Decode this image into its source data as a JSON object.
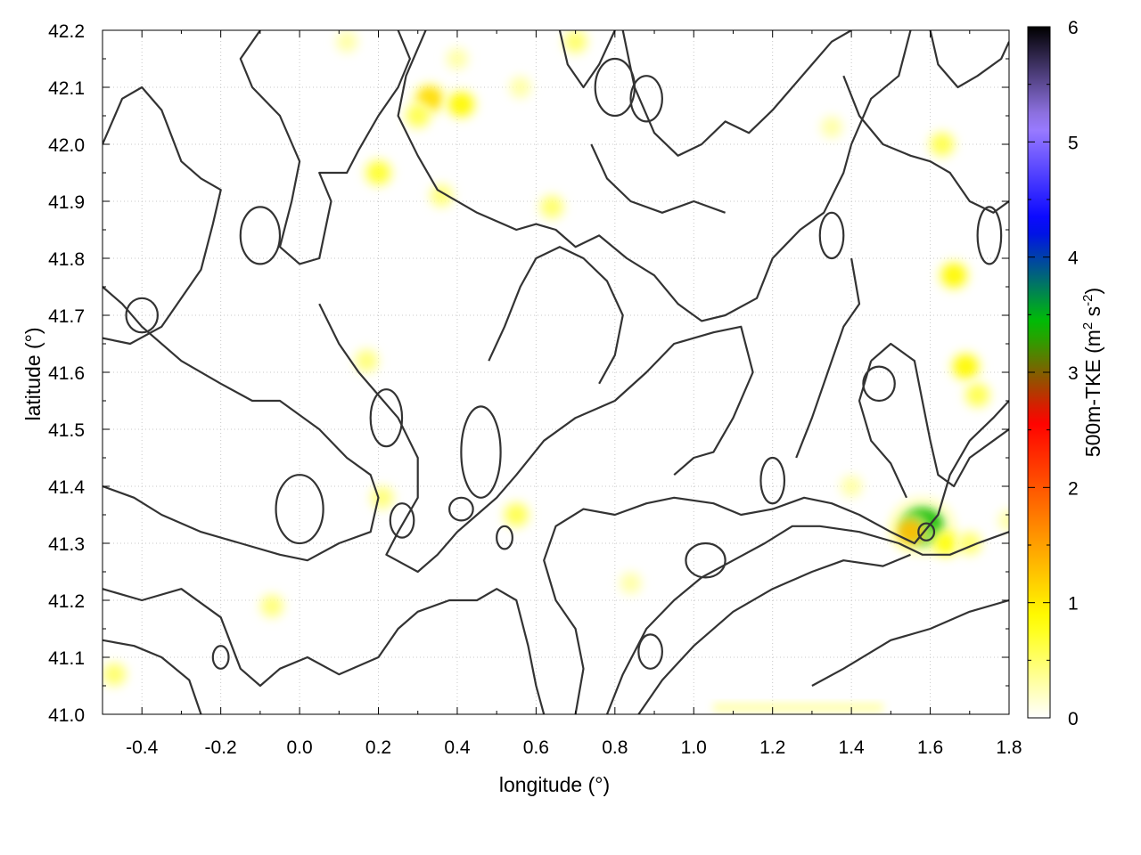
{
  "chart_data": {
    "type": "heatmap",
    "title": "",
    "xlabel": "longitude (°)",
    "ylabel": "latitude (°)",
    "xlim": [
      -0.5,
      1.8
    ],
    "ylim": [
      41.0,
      42.2
    ],
    "x_ticks": [
      "-0.4",
      "-0.2",
      "0.0",
      "0.2",
      "0.4",
      "0.6",
      "0.8",
      "1.0",
      "1.2",
      "1.4",
      "1.6",
      "1.8"
    ],
    "y_ticks": [
      "41.0",
      "41.1",
      "41.2",
      "41.3",
      "41.4",
      "41.5",
      "41.6",
      "41.7",
      "41.8",
      "41.9",
      "42.0",
      "42.1",
      "42.2"
    ],
    "grid": true,
    "colorbar": {
      "label_main": "500m-TKE (m",
      "label_sup1": "2",
      "label_mid": " s",
      "label_sup2": "-2",
      "label_end": ")",
      "min": 0,
      "max": 6,
      "ticks": [
        "0",
        "1",
        "2",
        "3",
        "4",
        "5",
        "6"
      ],
      "colors": [
        "#ffffff",
        "#ffff00",
        "#ff8000",
        "#ff0000",
        "#00c000",
        "#0000ff",
        "#a080ff",
        "#000000"
      ]
    },
    "tke_blobs": [
      {
        "lon": 0.33,
        "lat": 42.08,
        "value": 1.1
      },
      {
        "lon": 0.41,
        "lat": 42.07,
        "value": 0.9
      },
      {
        "lon": 0.3,
        "lat": 42.05,
        "value": 0.6
      },
      {
        "lon": 0.2,
        "lat": 41.95,
        "value": 0.7
      },
      {
        "lon": 0.36,
        "lat": 41.91,
        "value": 0.45
      },
      {
        "lon": 0.4,
        "lat": 42.15,
        "value": 0.3
      },
      {
        "lon": 0.64,
        "lat": 41.89,
        "value": 0.5
      },
      {
        "lon": 1.63,
        "lat": 42.0,
        "value": 0.6
      },
      {
        "lon": 1.69,
        "lat": 41.61,
        "value": 0.9
      },
      {
        "lon": 1.72,
        "lat": 41.56,
        "value": 0.6
      },
      {
        "lon": 1.66,
        "lat": 41.77,
        "value": 0.9
      },
      {
        "lon": 1.58,
        "lat": 41.33,
        "value": 3.4
      },
      {
        "lon": 1.55,
        "lat": 41.32,
        "value": 1.3
      },
      {
        "lon": 1.64,
        "lat": 41.3,
        "value": 0.8
      },
      {
        "lon": 1.7,
        "lat": 41.3,
        "value": 0.5
      },
      {
        "lon": 0.55,
        "lat": 41.35,
        "value": 0.6
      },
      {
        "lon": 0.21,
        "lat": 41.38,
        "value": 0.45
      },
      {
        "lon": 0.17,
        "lat": 41.62,
        "value": 0.45
      },
      {
        "lon": -0.07,
        "lat": 41.19,
        "value": 0.45
      },
      {
        "lon": -0.47,
        "lat": 41.07,
        "value": 0.5
      },
      {
        "lon": 0.84,
        "lat": 41.23,
        "value": 0.3
      },
      {
        "lon": 1.35,
        "lat": 42.03,
        "value": 0.3
      },
      {
        "lon": 1.4,
        "lat": 41.4,
        "value": 0.3
      },
      {
        "lon": 1.8,
        "lat": 41.34,
        "value": 0.3
      },
      {
        "lon": 0.7,
        "lat": 42.18,
        "value": 0.5
      },
      {
        "lon": 0.12,
        "lat": 42.18,
        "value": 0.3
      },
      {
        "lon": 0.56,
        "lat": 42.1,
        "value": 0.3
      }
    ],
    "tke_band": {
      "lon": [
        1.05,
        1.48
      ],
      "lat": 41.01,
      "value": 0.35
    },
    "contours": [
      [
        [
          -0.5,
          42.0
        ],
        [
          -0.45,
          42.08
        ],
        [
          -0.4,
          42.1
        ],
        [
          -0.35,
          42.06
        ],
        [
          -0.3,
          41.97
        ],
        [
          -0.25,
          41.94
        ],
        [
          -0.2,
          41.92
        ],
        [
          -0.22,
          41.86
        ],
        [
          -0.25,
          41.78
        ],
        [
          -0.3,
          41.73
        ],
        [
          -0.35,
          41.68
        ],
        [
          -0.43,
          41.65
        ],
        [
          -0.5,
          41.66
        ]
      ],
      [
        [
          -0.1,
          42.2
        ],
        [
          -0.15,
          42.15
        ],
        [
          -0.12,
          42.1
        ],
        [
          -0.05,
          42.05
        ],
        [
          0.0,
          41.97
        ],
        [
          -0.02,
          41.9
        ],
        [
          -0.05,
          41.82
        ],
        [
          0.0,
          41.79
        ],
        [
          0.05,
          41.8
        ],
        [
          0.08,
          41.9
        ],
        [
          0.05,
          41.95
        ],
        [
          0.12,
          41.95
        ],
        [
          0.15,
          41.99
        ],
        [
          0.2,
          42.05
        ],
        [
          0.25,
          42.1
        ],
        [
          0.28,
          42.15
        ],
        [
          0.25,
          42.2
        ]
      ],
      [
        [
          0.32,
          42.2
        ],
        [
          0.27,
          42.12
        ],
        [
          0.25,
          42.05
        ],
        [
          0.3,
          41.98
        ],
        [
          0.35,
          41.92
        ],
        [
          0.45,
          41.88
        ],
        [
          0.55,
          41.85
        ],
        [
          0.6,
          41.86
        ],
        [
          0.65,
          41.85
        ],
        [
          0.7,
          41.82
        ],
        [
          0.76,
          41.84
        ],
        [
          0.83,
          41.8
        ],
        [
          0.9,
          41.77
        ],
        [
          0.96,
          41.72
        ],
        [
          1.02,
          41.69
        ],
        [
          1.08,
          41.7
        ],
        [
          1.16,
          41.73
        ],
        [
          1.2,
          41.8
        ],
        [
          1.27,
          41.85
        ],
        [
          1.33,
          41.88
        ],
        [
          1.38,
          41.95
        ],
        [
          1.4,
          42.0
        ],
        [
          1.45,
          42.08
        ],
        [
          1.52,
          42.12
        ],
        [
          1.55,
          42.2
        ]
      ],
      [
        [
          -0.5,
          41.75
        ],
        [
          -0.45,
          41.72
        ],
        [
          -0.4,
          41.68
        ],
        [
          -0.3,
          41.62
        ],
        [
          -0.2,
          41.58
        ],
        [
          -0.12,
          41.55
        ],
        [
          -0.05,
          41.55
        ],
        [
          0.05,
          41.5
        ],
        [
          0.12,
          41.45
        ],
        [
          0.18,
          41.42
        ],
        [
          0.2,
          41.38
        ],
        [
          0.18,
          41.32
        ],
        [
          0.1,
          41.3
        ],
        [
          0.02,
          41.27
        ],
        [
          -0.05,
          41.28
        ],
        [
          -0.15,
          41.3
        ],
        [
          -0.25,
          41.32
        ],
        [
          -0.35,
          41.35
        ],
        [
          -0.42,
          41.38
        ],
        [
          -0.5,
          41.4
        ]
      ],
      [
        [
          0.05,
          41.72
        ],
        [
          0.1,
          41.65
        ],
        [
          0.15,
          41.6
        ],
        [
          0.2,
          41.56
        ],
        [
          0.25,
          41.52
        ],
        [
          0.3,
          41.45
        ],
        [
          0.3,
          41.38
        ],
        [
          0.25,
          41.32
        ],
        [
          0.22,
          41.28
        ],
        [
          0.3,
          41.25
        ],
        [
          0.35,
          41.28
        ],
        [
          0.4,
          41.32
        ],
        [
          0.45,
          41.35
        ],
        [
          0.5,
          41.38
        ],
        [
          0.55,
          41.42
        ],
        [
          0.62,
          41.48
        ],
        [
          0.7,
          41.52
        ],
        [
          0.8,
          41.55
        ],
        [
          0.88,
          41.6
        ],
        [
          0.95,
          41.65
        ],
        [
          1.05,
          41.67
        ],
        [
          1.12,
          41.68
        ],
        [
          1.15,
          41.6
        ],
        [
          1.1,
          41.52
        ],
        [
          1.05,
          41.46
        ],
        [
          1.0,
          41.45
        ],
        [
          0.95,
          41.42
        ]
      ],
      [
        [
          -0.5,
          41.22
        ],
        [
          -0.4,
          41.2
        ],
        [
          -0.3,
          41.22
        ],
        [
          -0.2,
          41.17
        ],
        [
          -0.15,
          41.08
        ],
        [
          -0.1,
          41.05
        ],
        [
          -0.05,
          41.08
        ],
        [
          0.02,
          41.1
        ],
        [
          0.1,
          41.07
        ],
        [
          0.2,
          41.1
        ],
        [
          0.25,
          41.15
        ],
        [
          0.3,
          41.18
        ],
        [
          0.38,
          41.2
        ],
        [
          0.45,
          41.2
        ],
        [
          0.5,
          41.22
        ],
        [
          0.55,
          41.2
        ],
        [
          0.58,
          41.12
        ],
        [
          0.6,
          41.05
        ],
        [
          0.62,
          41.0
        ]
      ],
      [
        [
          -0.5,
          41.13
        ],
        [
          -0.42,
          41.12
        ],
        [
          -0.35,
          41.1
        ],
        [
          -0.28,
          41.06
        ],
        [
          -0.25,
          41.0
        ]
      ],
      [
        [
          0.7,
          41.0
        ],
        [
          0.72,
          41.08
        ],
        [
          0.7,
          41.15
        ],
        [
          0.65,
          41.2
        ],
        [
          0.62,
          41.27
        ],
        [
          0.65,
          41.33
        ],
        [
          0.72,
          41.36
        ],
        [
          0.8,
          41.35
        ],
        [
          0.88,
          41.37
        ],
        [
          0.95,
          41.38
        ],
        [
          1.05,
          41.37
        ],
        [
          1.12,
          41.35
        ],
        [
          1.2,
          41.36
        ],
        [
          1.28,
          41.38
        ],
        [
          1.35,
          41.37
        ],
        [
          1.42,
          41.35
        ],
        [
          1.5,
          41.32
        ],
        [
          1.56,
          41.3
        ],
        [
          1.62,
          41.35
        ],
        [
          1.65,
          41.42
        ],
        [
          1.7,
          41.48
        ],
        [
          1.76,
          41.52
        ],
        [
          1.8,
          41.55
        ]
      ],
      [
        [
          0.78,
          41.0
        ],
        [
          0.82,
          41.07
        ],
        [
          0.88,
          41.15
        ],
        [
          0.95,
          41.2
        ],
        [
          1.02,
          41.24
        ],
        [
          1.1,
          41.27
        ],
        [
          1.18,
          41.3
        ],
        [
          1.25,
          41.33
        ],
        [
          1.32,
          41.33
        ],
        [
          1.42,
          41.32
        ],
        [
          1.52,
          41.3
        ],
        [
          1.58,
          41.28
        ],
        [
          1.65,
          41.28
        ],
        [
          1.72,
          41.3
        ],
        [
          1.8,
          41.32
        ]
      ],
      [
        [
          0.86,
          41.0
        ],
        [
          0.92,
          41.06
        ],
        [
          1.0,
          41.12
        ],
        [
          1.1,
          41.18
        ],
        [
          1.2,
          41.22
        ],
        [
          1.3,
          41.25
        ],
        [
          1.38,
          41.27
        ],
        [
          1.48,
          41.26
        ],
        [
          1.55,
          41.28
        ]
      ],
      [
        [
          1.3,
          41.05
        ],
        [
          1.38,
          41.08
        ],
        [
          1.5,
          41.13
        ],
        [
          1.6,
          41.15
        ],
        [
          1.7,
          41.18
        ],
        [
          1.8,
          41.2
        ]
      ],
      [
        [
          1.45,
          41.62
        ],
        [
          1.5,
          41.65
        ],
        [
          1.56,
          41.62
        ],
        [
          1.58,
          41.55
        ],
        [
          1.6,
          41.48
        ],
        [
          1.62,
          41.42
        ],
        [
          1.66,
          41.4
        ],
        [
          1.7,
          41.45
        ],
        [
          1.76,
          41.48
        ],
        [
          1.8,
          41.5
        ]
      ],
      [
        [
          1.45,
          41.62
        ],
        [
          1.42,
          41.55
        ],
        [
          1.45,
          41.48
        ],
        [
          1.5,
          41.44
        ],
        [
          1.54,
          41.38
        ]
      ],
      [
        [
          1.38,
          42.12
        ],
        [
          1.42,
          42.05
        ],
        [
          1.48,
          42.0
        ],
        [
          1.55,
          41.98
        ],
        [
          1.6,
          41.97
        ],
        [
          1.65,
          41.95
        ],
        [
          1.7,
          41.9
        ],
        [
          1.76,
          41.88
        ],
        [
          1.8,
          41.9
        ]
      ],
      [
        [
          1.6,
          42.2
        ],
        [
          1.62,
          42.14
        ],
        [
          1.67,
          42.1
        ],
        [
          1.72,
          42.12
        ],
        [
          1.78,
          42.15
        ],
        [
          1.8,
          42.18
        ]
      ],
      [
        [
          0.66,
          42.2
        ],
        [
          0.68,
          42.14
        ],
        [
          0.72,
          42.1
        ],
        [
          0.76,
          42.14
        ],
        [
          0.8,
          42.2
        ]
      ],
      [
        [
          0.82,
          42.2
        ],
        [
          0.85,
          42.1
        ],
        [
          0.9,
          42.02
        ],
        [
          0.96,
          41.98
        ],
        [
          1.02,
          42.0
        ],
        [
          1.08,
          42.04
        ],
        [
          1.14,
          42.02
        ],
        [
          1.2,
          42.06
        ],
        [
          1.25,
          42.1
        ],
        [
          1.3,
          42.14
        ],
        [
          1.35,
          42.18
        ],
        [
          1.4,
          42.2
        ]
      ],
      [
        [
          0.74,
          42.0
        ],
        [
          0.78,
          41.94
        ],
        [
          0.84,
          41.9
        ],
        [
          0.92,
          41.88
        ],
        [
          1.0,
          41.9
        ],
        [
          1.08,
          41.88
        ]
      ],
      [
        [
          0.48,
          41.62
        ],
        [
          0.52,
          41.68
        ],
        [
          0.56,
          41.75
        ],
        [
          0.6,
          41.8
        ],
        [
          0.66,
          41.82
        ],
        [
          0.72,
          41.8
        ],
        [
          0.78,
          41.76
        ],
        [
          0.82,
          41.7
        ],
        [
          0.8,
          41.63
        ],
        [
          0.76,
          41.58
        ]
      ],
      [
        [
          1.26,
          41.45
        ],
        [
          1.3,
          41.52
        ],
        [
          1.34,
          41.6
        ],
        [
          1.38,
          41.68
        ],
        [
          1.42,
          41.72
        ],
        [
          1.4,
          41.8
        ]
      ]
    ],
    "loops": [
      {
        "lon": 0.46,
        "lat": 41.46,
        "rx": 0.05,
        "ry": 0.08
      },
      {
        "lon": 0.22,
        "lat": 41.52,
        "rx": 0.04,
        "ry": 0.05
      },
      {
        "lon": 0.41,
        "lat": 41.36,
        "rx": 0.03,
        "ry": 0.02
      },
      {
        "lon": 0.52,
        "lat": 41.31,
        "rx": 0.02,
        "ry": 0.02
      },
      {
        "lon": 0.26,
        "lat": 41.34,
        "rx": 0.03,
        "ry": 0.03
      },
      {
        "lon": 1.03,
        "lat": 41.27,
        "rx": 0.05,
        "ry": 0.03
      },
      {
        "lon": 1.47,
        "lat": 41.58,
        "rx": 0.04,
        "ry": 0.03
      },
      {
        "lon": 1.35,
        "lat": 41.84,
        "rx": 0.03,
        "ry": 0.04
      },
      {
        "lon": 1.75,
        "lat": 41.84,
        "rx": 0.03,
        "ry": 0.05
      },
      {
        "lon": 0.0,
        "lat": 41.36,
        "rx": 0.06,
        "ry": 0.06
      },
      {
        "lon": -0.1,
        "lat": 41.84,
        "rx": 0.05,
        "ry": 0.05
      },
      {
        "lon": -0.4,
        "lat": 41.7,
        "rx": 0.04,
        "ry": 0.03
      },
      {
        "lon": 0.8,
        "lat": 42.1,
        "rx": 0.05,
        "ry": 0.05
      },
      {
        "lon": 0.88,
        "lat": 42.08,
        "rx": 0.04,
        "ry": 0.04
      },
      {
        "lon": 0.89,
        "lat": 41.11,
        "rx": 0.03,
        "ry": 0.03
      },
      {
        "lon": 1.2,
        "lat": 41.41,
        "rx": 0.03,
        "ry": 0.04
      },
      {
        "lon": -0.2,
        "lat": 41.1,
        "rx": 0.02,
        "ry": 0.02
      },
      {
        "lon": 1.59,
        "lat": 41.32,
        "rx": 0.02,
        "ry": 0.015
      }
    ]
  }
}
